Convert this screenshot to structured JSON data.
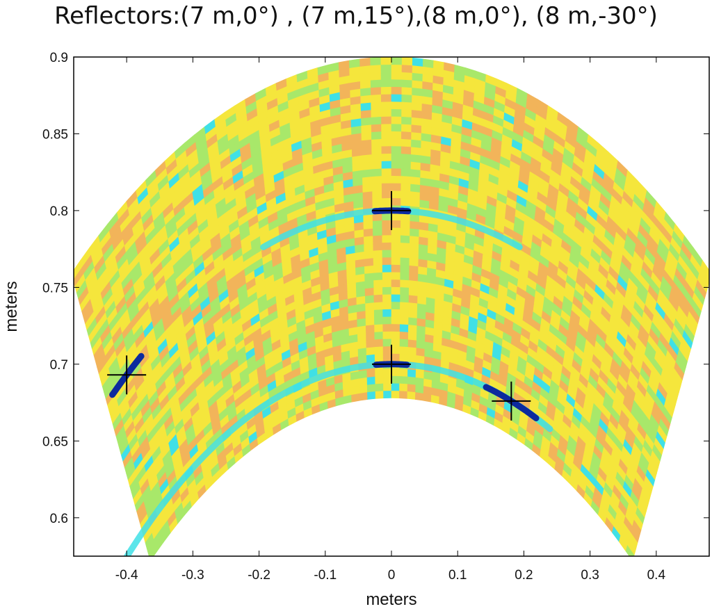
{
  "chart_data": {
    "type": "heatmap",
    "title": "Reflectors:(7 m,0°) , (7 m,15°),(8 m,0°), (8 m,-30°)",
    "xlabel": "meters",
    "ylabel": "meters",
    "xlim": [
      -0.48,
      0.48
    ],
    "ylim": [
      0.575,
      0.9
    ],
    "xticks": [
      -0.4,
      -0.3,
      -0.2,
      -0.1,
      0,
      0.1,
      0.2,
      0.3,
      0.4
    ],
    "xtick_labels": [
      "-0.4",
      "-0.3",
      "-0.2",
      "-0.1",
      "0",
      "0.1",
      "0.2",
      "0.3",
      "0.4"
    ],
    "yticks": [
      0.6,
      0.65,
      0.7,
      0.75,
      0.8,
      0.85,
      0.9
    ],
    "ytick_labels": [
      "0.6",
      "0.65",
      "0.7",
      "0.75",
      "0.8",
      "0.85",
      "0.9"
    ],
    "grid": false,
    "sector": {
      "apex": [
        0,
        0
      ],
      "inner_radius": 0.678,
      "outer_radius": 0.9,
      "half_angle_deg": 32.5
    },
    "reflector_markers": [
      {
        "x": 0.0,
        "y": 0.8
      },
      {
        "x": 0.0,
        "y": 0.7
      },
      {
        "x": 0.181,
        "y": 0.676
      },
      {
        "x": -0.4,
        "y": 0.693
      }
    ],
    "highlight_arcs": [
      {
        "radius": 0.8,
        "from_deg": -14,
        "to_deg": 14
      },
      {
        "radius": 0.7,
        "from_deg": -35,
        "to_deg": 20
      }
    ],
    "colors": {
      "background_yellow": "#f5e63c",
      "orange": "#f2b45a",
      "green": "#a8e86a",
      "cyan": "#3fe0e6",
      "dark_blue": "#0c2a9e",
      "marker": "#000000"
    }
  }
}
